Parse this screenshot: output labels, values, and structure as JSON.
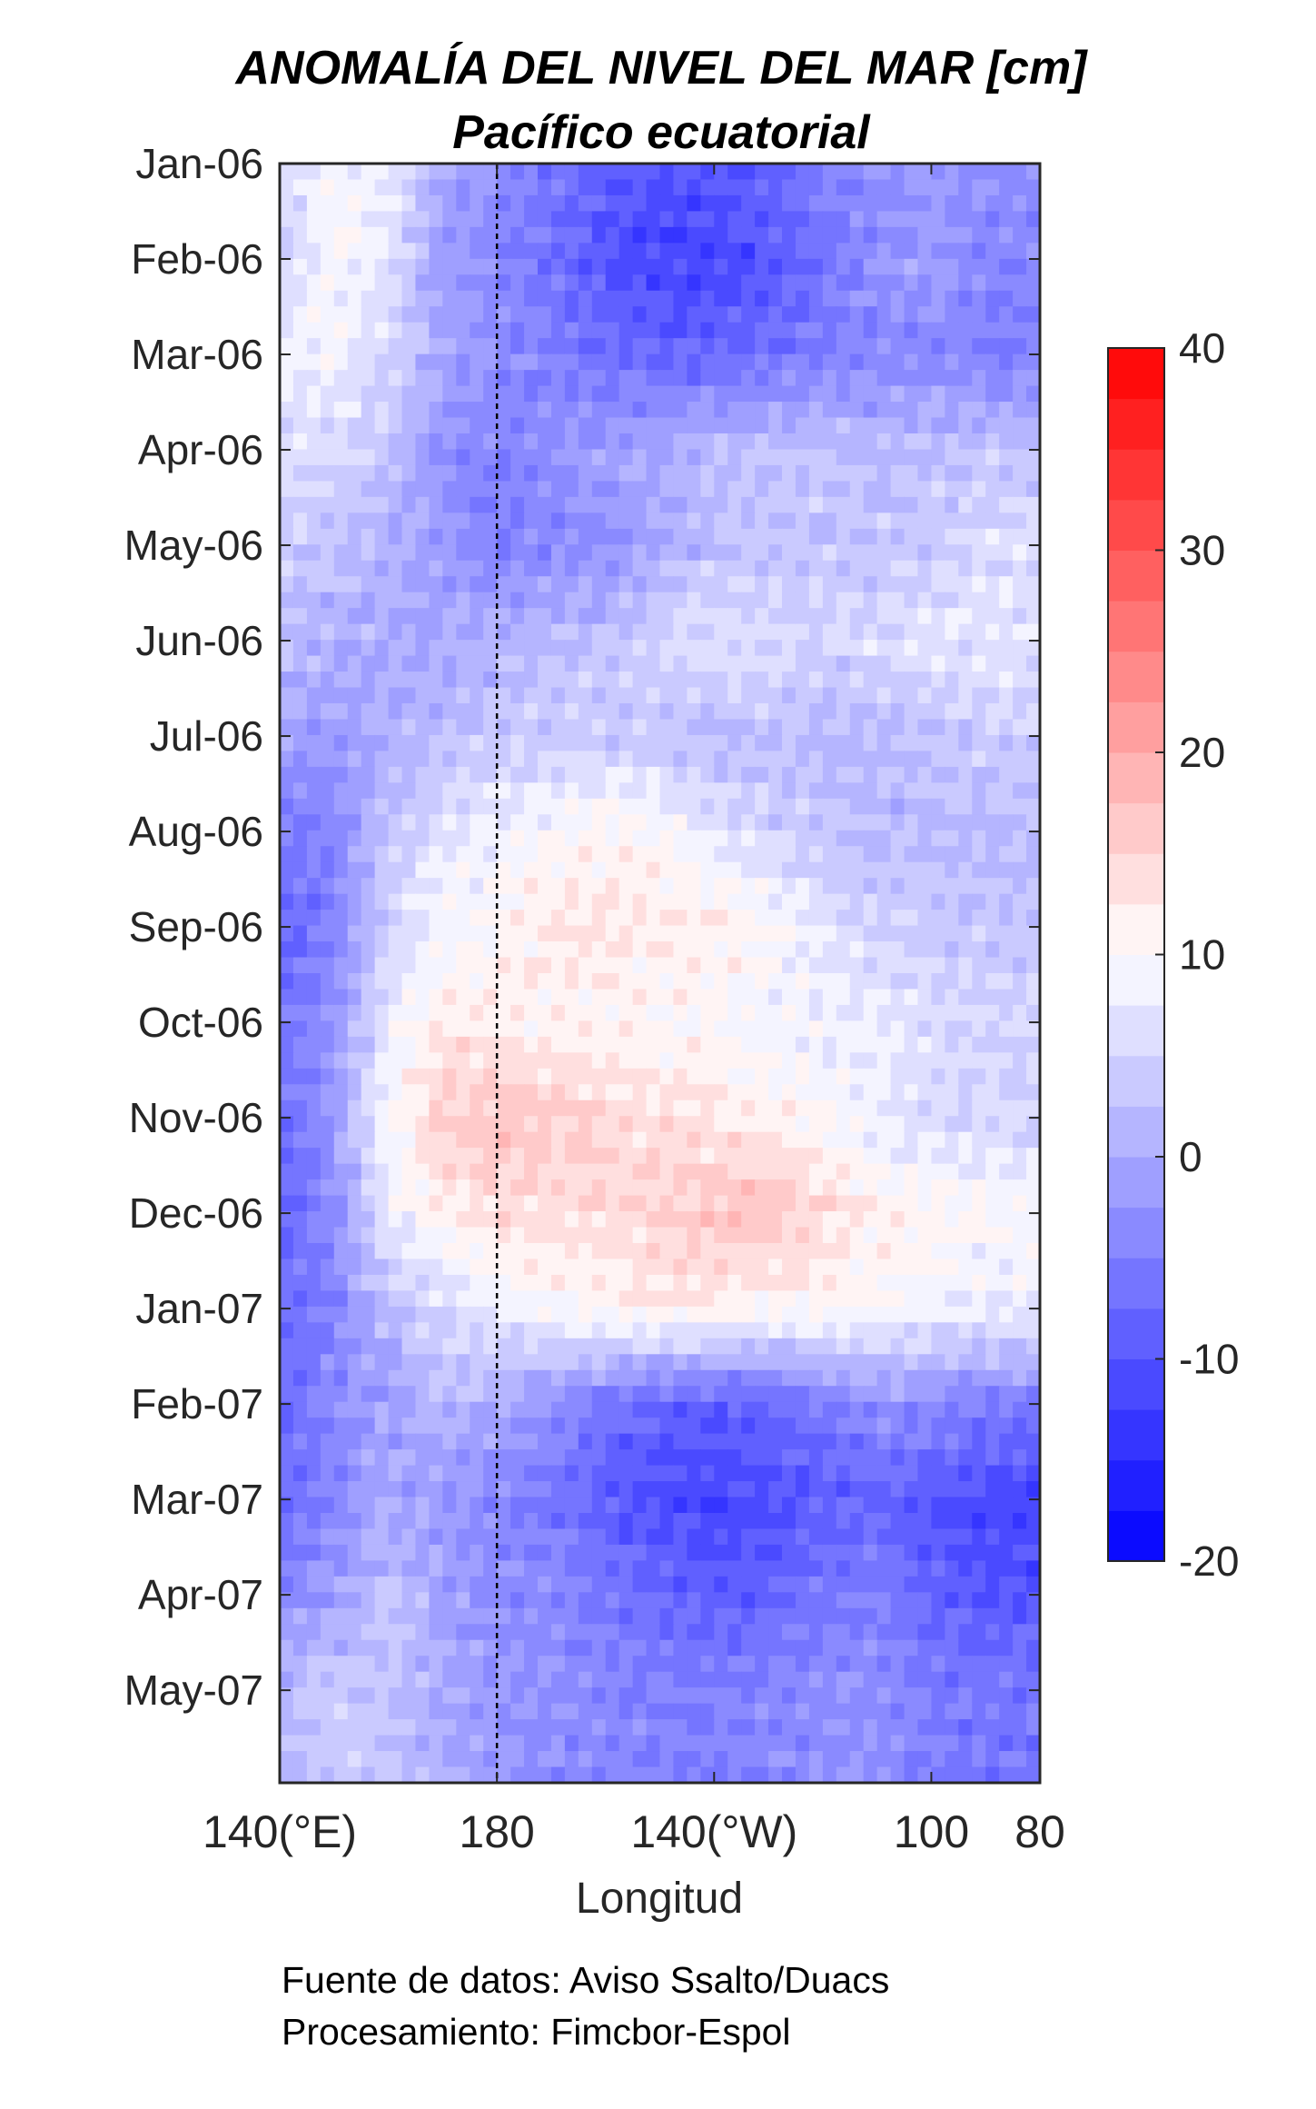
{
  "chart_data": {
    "type": "heatmap",
    "title": "ANOMALÍA DEL NIVEL DEL MAR [cm]",
    "subtitle": "Pacífico ecuatorial",
    "xlabel": "Longitud",
    "ylabel": "",
    "x_units": "degrees east (0-360)",
    "xlim": [
      140,
      280
    ],
    "x_ticks": [
      {
        "value": 140,
        "label": "140(°E)"
      },
      {
        "value": 180,
        "label": "180"
      },
      {
        "value": 220,
        "label": "140(°W)"
      },
      {
        "value": 260,
        "label": "100"
      },
      {
        "value": 280,
        "label": "80"
      }
    ],
    "y_ticks": [
      "Jan-06",
      "Feb-06",
      "Mar-06",
      "Apr-06",
      "May-06",
      "Jun-06",
      "Jul-06",
      "Aug-06",
      "Sep-06",
      "Oct-06",
      "Nov-06",
      "Dec-06",
      "Jan-07",
      "Feb-07",
      "Mar-07",
      "Apr-07",
      "May-07"
    ],
    "ylim_months": [
      0,
      16.97
    ],
    "reference_line": {
      "x": 180,
      "style": "dashed"
    },
    "contour_levels": [
      -10,
      10,
      20
    ],
    "colorbar": {
      "min": -20,
      "max": 40,
      "ticks": [
        -20,
        -10,
        0,
        10,
        20,
        30,
        40
      ],
      "low_color": "#0000ff",
      "mid_color": "#ffffff",
      "mid_value": 10,
      "high_color": "#ff0000",
      "step": 2.5
    },
    "grid_x": [
      140,
      150,
      160,
      170,
      180,
      190,
      200,
      210,
      220,
      230,
      240,
      250,
      260,
      270
    ],
    "values_cm": [
      [
        5,
        10,
        8,
        0,
        -3,
        -6,
        -8,
        -10,
        -10,
        -8,
        -5,
        -3,
        -2,
        -3
      ],
      [
        4,
        10,
        7,
        -2,
        -4,
        -7,
        -10,
        -12,
        -12,
        -10,
        -6,
        -3,
        -1,
        -4
      ],
      [
        8,
        9,
        5,
        0,
        -3,
        -5,
        -7,
        -8,
        -8,
        -7,
        -5,
        -4,
        -4,
        -5
      ],
      [
        6,
        6,
        3,
        -3,
        -5,
        -3,
        -1,
        0,
        2,
        3,
        3,
        2,
        2,
        3
      ],
      [
        4,
        3,
        1,
        -2,
        -5,
        -4,
        -3,
        0,
        2,
        3,
        3,
        3,
        4,
        6
      ],
      [
        2,
        1,
        0,
        0,
        1,
        2,
        3,
        5,
        7,
        6,
        5,
        6,
        7,
        7
      ],
      [
        0,
        -2,
        0,
        2,
        3,
        4,
        4,
        3,
        2,
        3,
        2,
        2,
        3,
        4
      ],
      [
        -6,
        -4,
        3,
        7,
        9,
        10,
        11,
        10,
        7,
        5,
        3,
        2,
        2,
        2
      ],
      [
        -8,
        -5,
        5,
        9,
        10,
        13,
        13,
        12,
        12,
        10,
        7,
        5,
        4,
        3
      ],
      [
        -6,
        -2,
        8,
        12,
        12,
        11,
        11,
        10,
        10,
        9,
        8,
        8,
        6,
        5
      ],
      [
        -8,
        -2,
        10,
        16,
        17,
        16,
        15,
        14,
        13,
        12,
        10,
        8,
        6,
        5
      ],
      [
        -8,
        -3,
        8,
        12,
        14,
        14,
        14,
        15,
        17,
        17,
        14,
        12,
        11,
        10
      ],
      [
        -8,
        -4,
        2,
        6,
        8,
        10,
        11,
        12,
        12,
        11,
        11,
        10,
        9,
        8
      ],
      [
        -7,
        -4,
        -1,
        2,
        0,
        -3,
        -6,
        -8,
        -9,
        -8,
        -6,
        -3,
        -4,
        -5
      ],
      [
        -8,
        -4,
        0,
        -2,
        -4,
        -6,
        -9,
        -11,
        -12,
        -11,
        -9,
        -8,
        -10,
        -12
      ],
      [
        -4,
        -1,
        3,
        -1,
        -3,
        -4,
        -6,
        -8,
        -9,
        -8,
        -6,
        -5,
        -8,
        -10
      ],
      [
        2,
        4,
        3,
        0,
        -2,
        -3,
        -4,
        -5,
        -5,
        -4,
        -3,
        -3,
        -5,
        -6
      ]
    ]
  },
  "footer": {
    "source": "Fuente de datos: Aviso Ssalto/Duacs",
    "processing": "Procesamiento: Fimcbor-Espol"
  }
}
